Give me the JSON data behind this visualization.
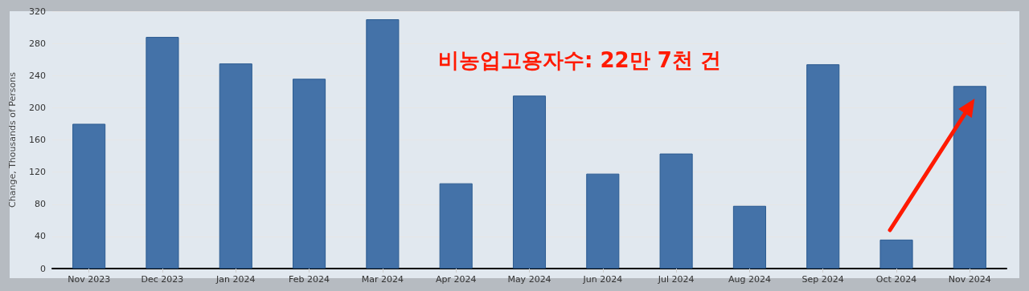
{
  "chart_data": {
    "type": "bar",
    "ylabel": "Change, Thousands of Persons",
    "categories": [
      "Nov 2023",
      "Dec 2023",
      "Jan 2024",
      "Feb 2024",
      "Mar 2024",
      "Apr 2024",
      "May 2024",
      "Jun 2024",
      "Jul 2024",
      "Aug 2024",
      "Sep 2024",
      "Oct 2024",
      "Nov 2024"
    ],
    "values": [
      180,
      288,
      255,
      236,
      310,
      106,
      215,
      118,
      143,
      78,
      254,
      36,
      227
    ],
    "color": "#4472a8",
    "ylim": [
      0,
      320
    ],
    "yticks": [
      0,
      40,
      80,
      120,
      160,
      200,
      240,
      280,
      320
    ],
    "grid": "y",
    "annotations": [
      "비농업고용자수: 22만 7천 건"
    ]
  }
}
